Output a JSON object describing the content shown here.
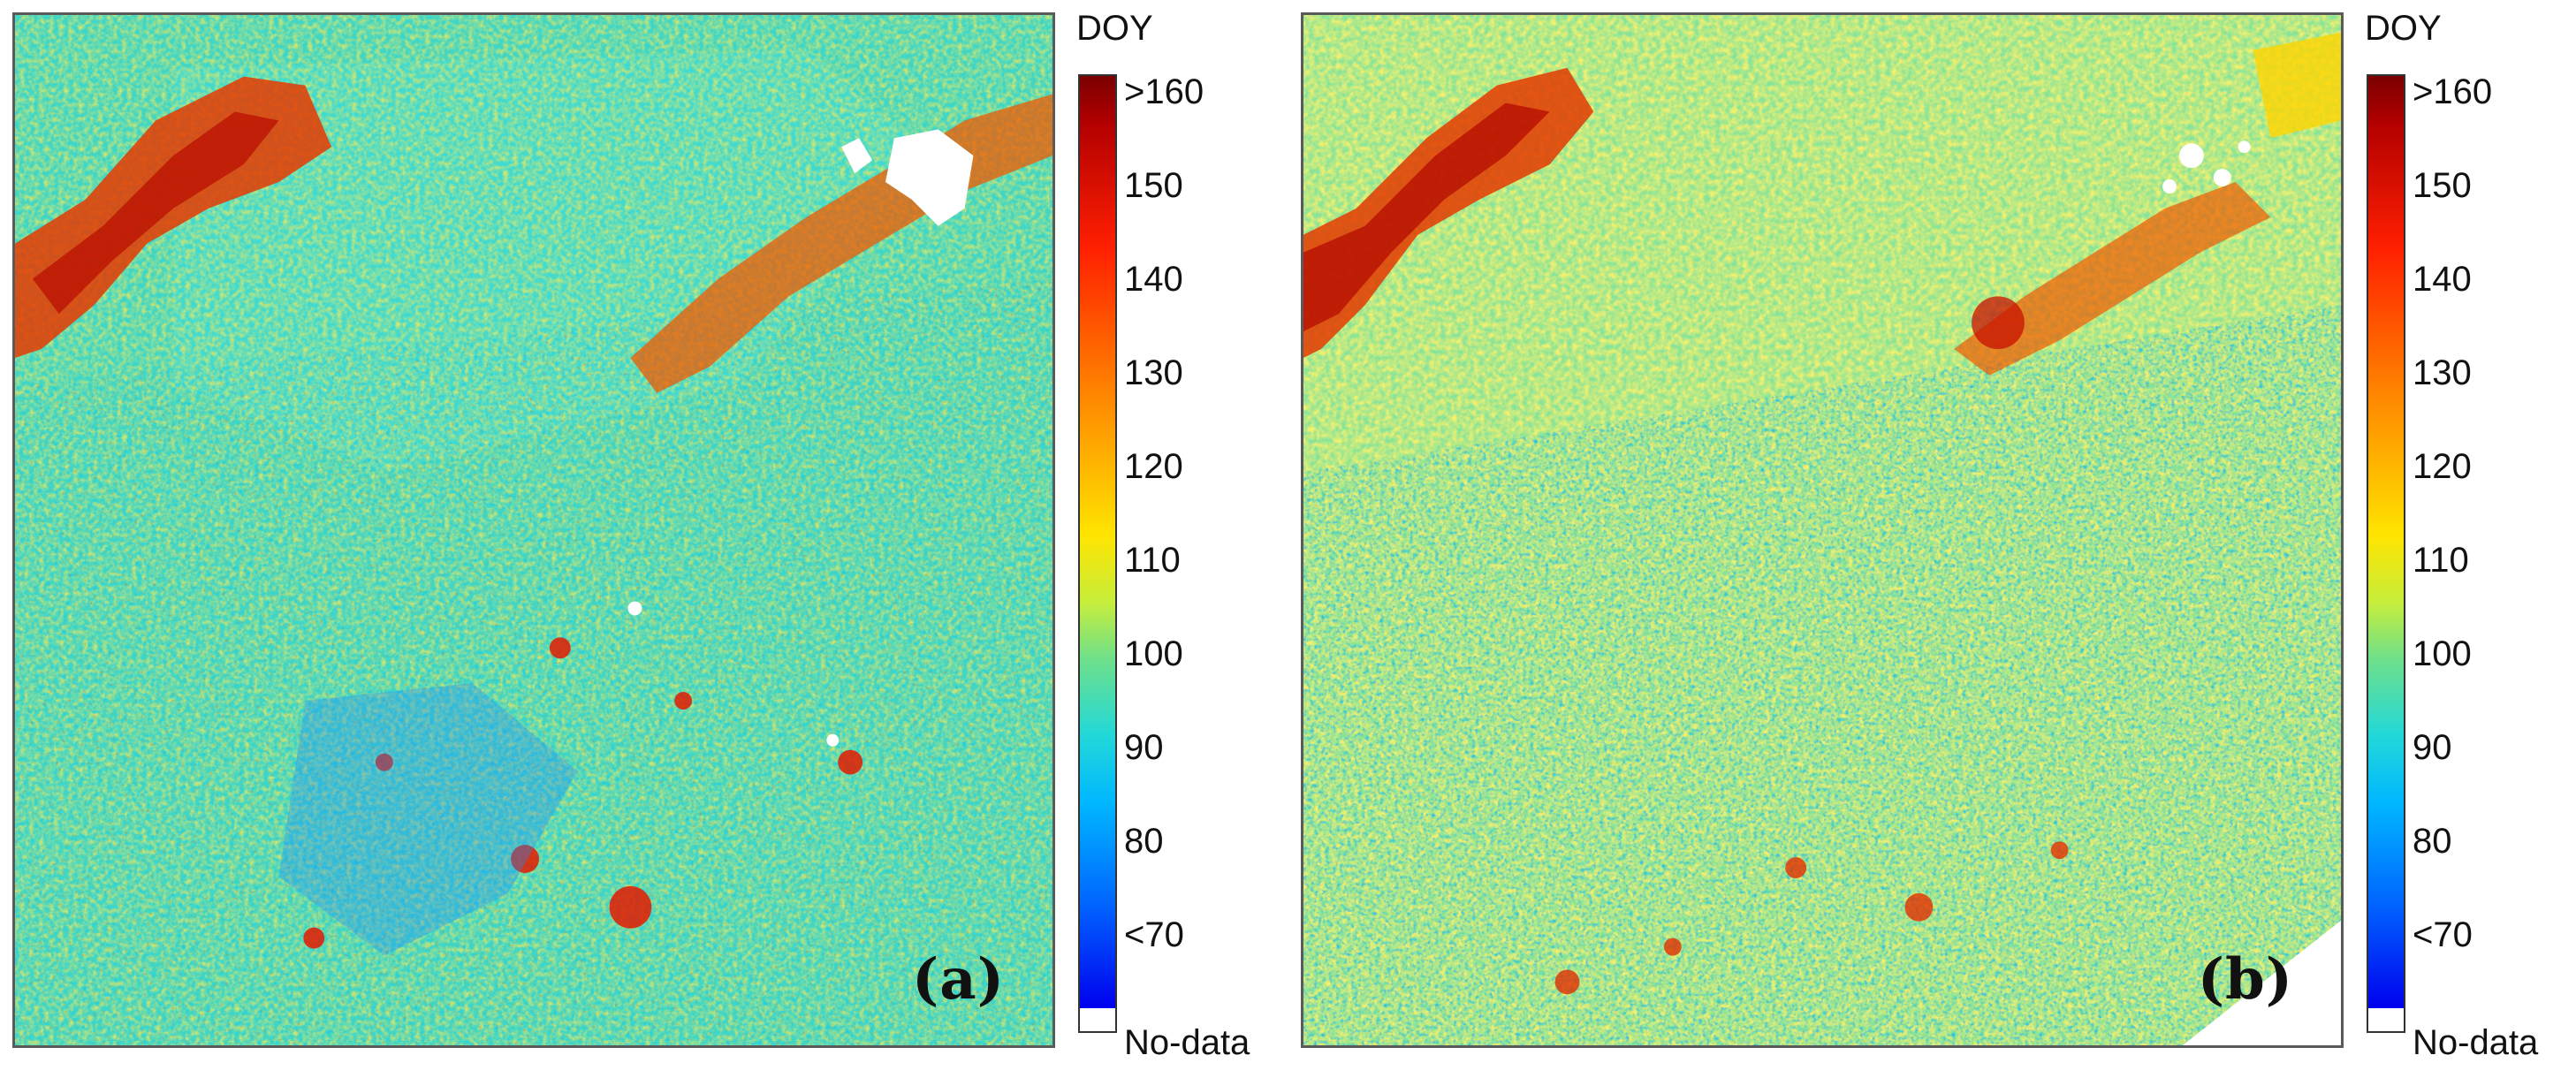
{
  "panels": [
    {
      "id": "a",
      "label": "(a)",
      "legend": {
        "title": "DOY",
        "ticks": [
          ">160",
          "150",
          "140",
          "130",
          "120",
          "110",
          "100",
          "90",
          "80",
          "<70",
          "No-data"
        ]
      }
    },
    {
      "id": "b",
      "label": "(b)",
      "legend": {
        "title": "DOY",
        "ticks": [
          ">160",
          "150",
          "140",
          "130",
          "120",
          "110",
          "100",
          "90",
          "80",
          "<70",
          "No-data"
        ]
      }
    }
  ],
  "colors": {
    "frame": "#5a5a5a",
    "base_cyan": "#36d1c8",
    "yellow": "#e8e600",
    "orange": "#ff8a00",
    "red": "#e01800",
    "dark_red": "#7a0000",
    "blue": "#0062ff",
    "deep_blue": "#0000ee",
    "no_data": "#ffffff"
  }
}
